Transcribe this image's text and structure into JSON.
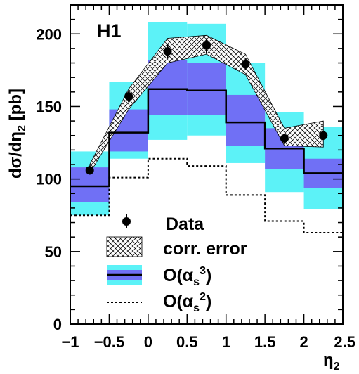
{
  "chart_data": {
    "type": "line",
    "label": "H1",
    "xlabel": "η",
    "xlabel_sub": "2",
    "ylabel_parts": {
      "d1": "d",
      "sigma": "σ",
      "mid": "/d",
      "eta": "η",
      "sub": "2",
      "unit": " [pb]"
    },
    "xlim": [
      -1,
      2.5
    ],
    "ylim": [
      0,
      220
    ],
    "x_ticks": [
      -1,
      -0.5,
      0,
      0.5,
      1,
      1.5,
      2,
      2.5
    ],
    "x_tick_labels": [
      "−1",
      "−0.5",
      "0",
      "0.5",
      "1",
      "1.5",
      "2",
      "2.5"
    ],
    "y_ticks": [
      0,
      50,
      100,
      150,
      200
    ],
    "y_tick_labels": [
      "0",
      "50",
      "100",
      "150",
      "200"
    ],
    "bins": [
      [
        -1,
        -0.5
      ],
      [
        -0.5,
        0
      ],
      [
        0,
        0.5
      ],
      [
        0.5,
        1
      ],
      [
        1,
        1.5
      ],
      [
        1.5,
        2
      ],
      [
        2,
        2.5
      ]
    ],
    "data": {
      "x": [
        -0.75,
        -0.25,
        0.25,
        0.75,
        1.25,
        1.75,
        2.25
      ],
      "y": [
        106,
        157,
        188,
        192,
        179,
        128,
        130
      ],
      "err": [
        3,
        4,
        5,
        5,
        4,
        3,
        3
      ]
    },
    "corr_error_band": {
      "x": [
        -0.75,
        -0.25,
        0.25,
        0.75,
        1.25,
        1.75,
        2.25
      ],
      "low": [
        104,
        148,
        180,
        186,
        172,
        123,
        122
      ],
      "high": [
        110,
        162,
        197,
        199,
        186,
        135,
        140
      ]
    },
    "nlo_band": {
      "central": [
        95,
        132,
        162,
        161,
        139,
        121,
        104
      ],
      "inner_low": [
        84,
        119,
        144,
        144,
        123,
        107,
        94
      ],
      "inner_high": [
        108,
        148,
        182,
        180,
        158,
        135,
        114
      ],
      "outer_low": [
        75,
        114,
        127,
        130,
        111,
        91,
        79
      ],
      "outer_high": [
        119,
        167,
        208,
        207,
        180,
        146,
        136
      ]
    },
    "lo_line": {
      "values": [
        75,
        101,
        114,
        109,
        89,
        71,
        63
      ]
    },
    "legend": {
      "placement": "bottom-left",
      "entries": [
        {
          "label": "Data"
        },
        {
          "label": "corr. error"
        },
        {
          "label_main": "O(",
          "label_alpha": "α",
          "label_sub": "s",
          "label_sup": "3",
          "label_close": ")"
        },
        {
          "label_main": "O(",
          "label_alpha": "α",
          "label_sub": "s",
          "label_sup": "2",
          "label_close": ")"
        }
      ]
    },
    "colors": {
      "outer_band": "#5cf2f7",
      "inner_band": "#7070f5",
      "data": "#000000",
      "lines": "#000000"
    }
  }
}
